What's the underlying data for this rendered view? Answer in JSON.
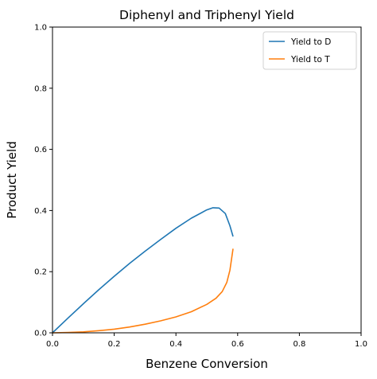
{
  "chart_data": {
    "type": "line",
    "title": "Diphenyl and Triphenyl Yield",
    "xlabel": "Benzene Conversion",
    "ylabel": "Product Yield",
    "xlim": [
      0,
      1
    ],
    "ylim": [
      0,
      1
    ],
    "xticks": [
      "0.0",
      "0.2",
      "0.4",
      "0.6",
      "0.8",
      "1.0"
    ],
    "yticks": [
      "0.0",
      "0.2",
      "0.4",
      "0.6",
      "0.8",
      "1.0"
    ],
    "grid": false,
    "legend_position": "top-right",
    "series": [
      {
        "name": "Yield to D",
        "color": "#1f77b4",
        "x": [
          0,
          0.05,
          0.1,
          0.15,
          0.2,
          0.25,
          0.3,
          0.35,
          0.4,
          0.45,
          0.5,
          0.52,
          0.54,
          0.56,
          0.575,
          0.585
        ],
        "y": [
          0,
          0.048,
          0.095,
          0.141,
          0.185,
          0.227,
          0.267,
          0.305,
          0.342,
          0.375,
          0.402,
          0.409,
          0.408,
          0.39,
          0.35,
          0.315
        ]
      },
      {
        "name": "Yield to T",
        "color": "#ff7f0e",
        "x": [
          0,
          0.05,
          0.1,
          0.15,
          0.2,
          0.25,
          0.3,
          0.35,
          0.4,
          0.45,
          0.5,
          0.53,
          0.55,
          0.565,
          0.575,
          0.585
        ],
        "y": [
          0,
          0.001,
          0.003,
          0.007,
          0.012,
          0.019,
          0.028,
          0.039,
          0.052,
          0.069,
          0.093,
          0.113,
          0.135,
          0.165,
          0.205,
          0.275
        ]
      }
    ]
  }
}
